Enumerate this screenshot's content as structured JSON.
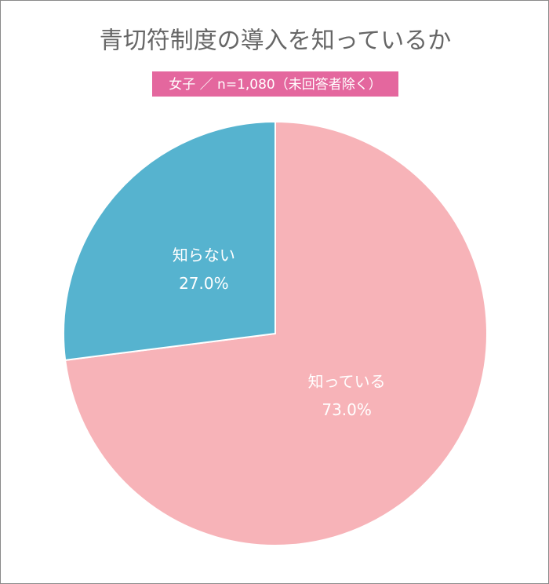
{
  "chart_data": {
    "type": "pie",
    "title": "青切符制度の導入を知っているか",
    "subtitle": "女子 ／ n=1,080（未回答者除く）",
    "categories": [
      "知っている",
      "知らない"
    ],
    "values": [
      73.0,
      27.0
    ],
    "value_labels": [
      "73.0%",
      "27.0%"
    ],
    "colors": [
      "#f7b3b8",
      "#56b3cf"
    ]
  }
}
